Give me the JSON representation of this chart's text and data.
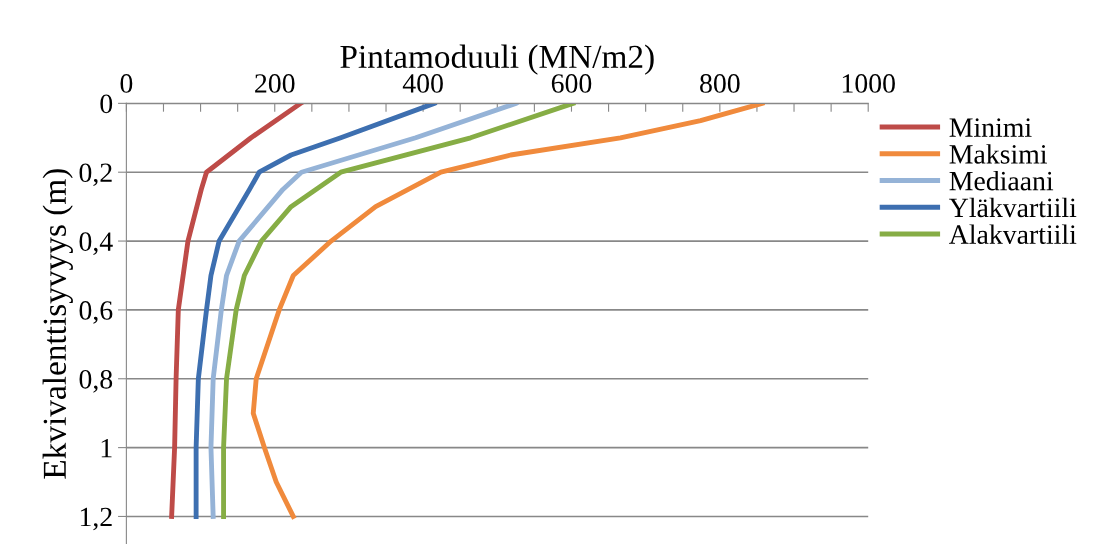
{
  "chart_data": {
    "type": "line",
    "xlabel": "Pintamoduuli (MN/m2)",
    "ylabel": "Ekvivalenttisyvyys (m)",
    "xlim": [
      0,
      1000
    ],
    "xticks": [
      0,
      {
        "value": 50,
        "label": null
      },
      {
        "value": 100,
        "label": null
      },
      {
        "value": 150,
        "label": null
      },
      200,
      {
        "value": 250,
        "label": null
      },
      {
        "value": 300,
        "label": null
      },
      {
        "value": 350,
        "label": null
      },
      400,
      {
        "value": 450,
        "label": null
      },
      {
        "value": 500,
        "label": null
      },
      {
        "value": 550,
        "label": null
      },
      600,
      {
        "value": 650,
        "label": null
      },
      {
        "value": 700,
        "label": null
      },
      {
        "value": 750,
        "label": null
      },
      800,
      {
        "value": 850,
        "label": null
      },
      {
        "value": 900,
        "label": null
      },
      {
        "value": 950,
        "label": null
      },
      1000
    ],
    "ylim": [
      1.28,
      0
    ],
    "yticks": [
      0,
      {
        "value": 0.2,
        "label": "0,2"
      },
      {
        "value": 0.4,
        "label": "0,4"
      },
      {
        "value": 0.6,
        "label": "0,6"
      },
      {
        "value": 0.8,
        "label": "0,8"
      },
      1,
      {
        "value": 1.2,
        "label": "1,2"
      }
    ],
    "grid": "y",
    "legend": "right",
    "marker": "none",
    "line_style": "solid",
    "series": [
      {
        "name": "Minimi",
        "color": "#be4b48",
        "x": [
          235,
          168,
          108,
          101,
          83,
          70,
          67,
          65,
          61
        ],
        "values": [
          0,
          0.1,
          0.2,
          0.25,
          0.4,
          0.6,
          0.8,
          1.0,
          1.2
        ]
      },
      {
        "name": "Maksimi",
        "color": "#f08a3c",
        "x": [
          857,
          774,
          666,
          518,
          424,
          336,
          276,
          225,
          206,
          175,
          171,
          186,
          202,
          225
        ],
        "values": [
          0,
          0.05,
          0.1,
          0.15,
          0.2,
          0.3,
          0.4,
          0.5,
          0.6,
          0.8,
          0.9,
          1.0,
          1.1,
          1.2
        ]
      },
      {
        "name": "Mediaani",
        "color": "#95b3d7",
        "x": [
          525,
          390,
          236,
          211,
          152,
          135,
          128,
          117,
          114,
          117
        ],
        "values": [
          0,
          0.1,
          0.2,
          0.25,
          0.4,
          0.5,
          0.6,
          0.8,
          1.0,
          1.2
        ]
      },
      {
        "name": "Yläkvartiili",
        "color": "#3d6fb0",
        "x": [
          415,
          289,
          222,
          179,
          166,
          125,
          114,
          108,
          97,
          94,
          94
        ],
        "values": [
          0,
          0.1,
          0.15,
          0.2,
          0.25,
          0.4,
          0.5,
          0.6,
          0.8,
          1.0,
          1.2
        ]
      },
      {
        "name": "Alakvartiili",
        "color": "#86ad45",
        "x": [
          602,
          464,
          289,
          222,
          182,
          159,
          148,
          135,
          131,
          131
        ],
        "values": [
          0,
          0.1,
          0.2,
          0.3,
          0.4,
          0.5,
          0.6,
          0.8,
          1.0,
          1.2
        ]
      }
    ]
  }
}
